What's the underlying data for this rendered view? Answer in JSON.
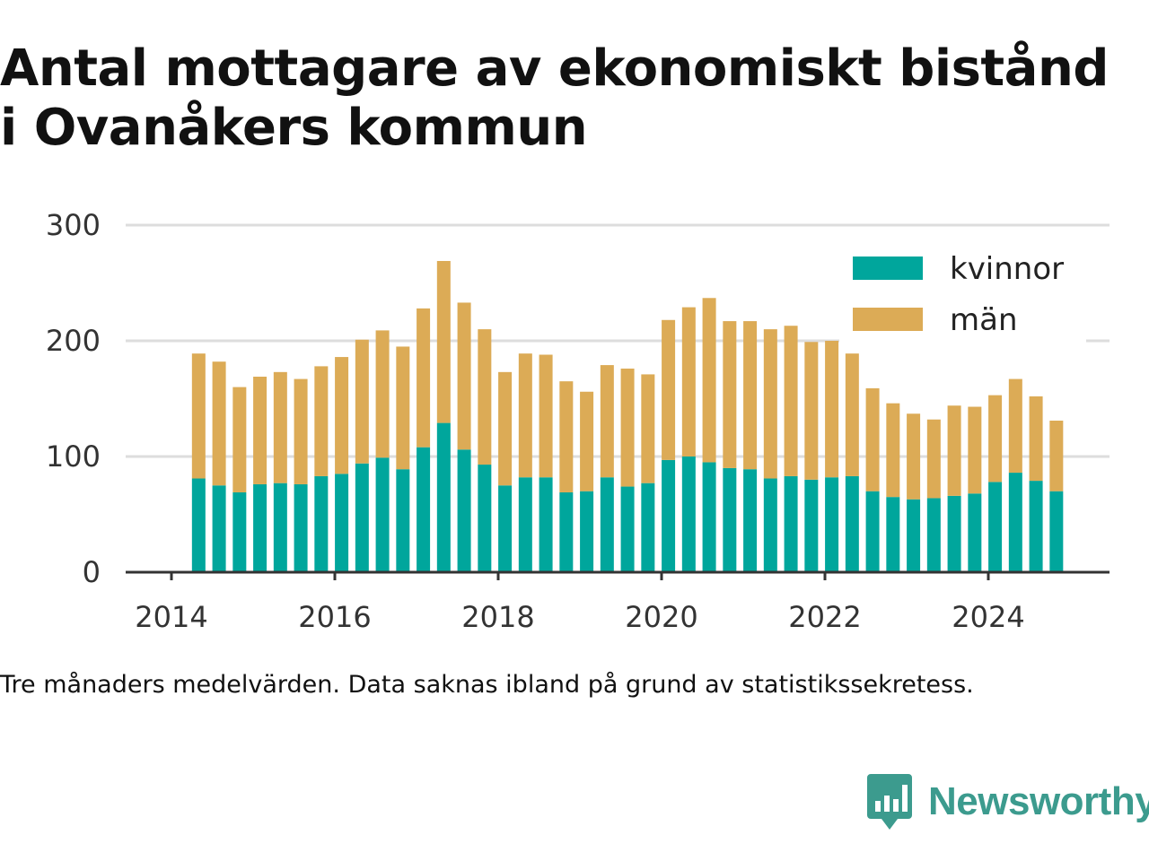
{
  "title": {
    "line1": "Antal mottagare av ekonomiskt bistånd",
    "line2": "i Ovanåkers kommun"
  },
  "note": "Tre månaders medelvärden. Data saknas ibland på grund av statistikssekretess.",
  "brand": {
    "name": "Newsworthy",
    "icon": "newsworthy-logo-icon",
    "color": "#3c9b8e"
  },
  "chart_data": {
    "type": "bar",
    "stacked": true,
    "x_axis_type": "date",
    "categories": [
      "2014-05",
      "2014-08",
      "2014-11",
      "2015-02",
      "2015-05",
      "2015-08",
      "2015-11",
      "2016-02",
      "2016-05",
      "2016-08",
      "2016-11",
      "2017-02",
      "2017-05",
      "2017-08",
      "2017-11",
      "2018-02",
      "2018-05",
      "2018-08",
      "2018-11",
      "2019-02",
      "2019-05",
      "2019-08",
      "2019-11",
      "2020-02",
      "2020-05",
      "2020-08",
      "2020-11",
      "2021-02",
      "2021-05",
      "2021-08",
      "2021-11",
      "2022-02",
      "2022-05",
      "2022-08",
      "2022-11",
      "2023-02",
      "2023-05",
      "2023-08",
      "2023-11",
      "2024-02",
      "2024-05",
      "2024-08",
      "2024-11"
    ],
    "series": [
      {
        "name": "kvinnor",
        "color": "#00a69c",
        "values": [
          81,
          75,
          69,
          76,
          77,
          76,
          83,
          85,
          94,
          99,
          89,
          108,
          129,
          106,
          93,
          75,
          82,
          82,
          69,
          70,
          82,
          74,
          77,
          97,
          100,
          95,
          90,
          89,
          81,
          83,
          80,
          82,
          83,
          70,
          65,
          63,
          64,
          66,
          68,
          78,
          86,
          79,
          70
        ]
      },
      {
        "name": "män",
        "color": "#dcab56",
        "values": [
          108,
          107,
          91,
          93,
          96,
          91,
          95,
          101,
          107,
          110,
          106,
          120,
          140,
          127,
          117,
          98,
          107,
          106,
          96,
          86,
          97,
          102,
          94,
          121,
          129,
          142,
          127,
          128,
          129,
          130,
          119,
          118,
          106,
          89,
          81,
          74,
          68,
          78,
          75,
          75,
          81,
          73,
          61
        ]
      }
    ],
    "yticks": [
      0,
      100,
      200,
      300
    ],
    "xticks": [
      "2014",
      "2016",
      "2018",
      "2020",
      "2022",
      "2024"
    ],
    "ylim": [
      0,
      300
    ],
    "xlabel": "",
    "ylabel": "",
    "grid": true,
    "legend": "top-right",
    "axis_color": "#333333",
    "grid_color": "#dddddd"
  }
}
